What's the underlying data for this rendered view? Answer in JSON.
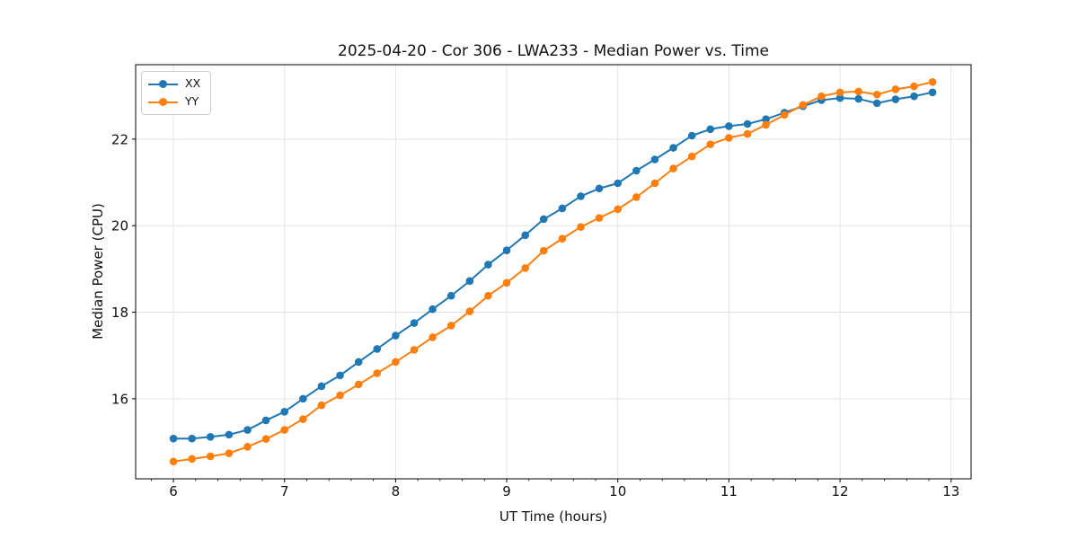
{
  "window": {
    "background": "#ffffff"
  },
  "chart_data": {
    "type": "line",
    "title": "2025-04-20 - Cor 306 - LWA233 - Median Power vs. Time",
    "xlabel": "UT Time (hours)",
    "ylabel": "Median Power (CPU)",
    "xlim": [
      5.66,
      13.18
    ],
    "ylim": [
      14.15,
      23.72
    ],
    "x_ticks": [
      6,
      7,
      8,
      9,
      10,
      11,
      12,
      13
    ],
    "x_minor_tick_step": 0.2,
    "y_ticks": [
      16,
      18,
      20,
      22
    ],
    "grid": true,
    "grid_color": "#e4e4e4",
    "legend_position": "upper-left",
    "x": [
      6,
      6.167,
      6.333,
      6.5,
      6.667,
      6.833,
      7,
      7.167,
      7.333,
      7.5,
      7.667,
      7.833,
      8,
      8.167,
      8.333,
      8.5,
      8.667,
      8.833,
      9,
      9.167,
      9.333,
      9.5,
      9.667,
      9.833,
      10,
      10.167,
      10.333,
      10.5,
      10.667,
      10.833,
      11,
      11.167,
      11.333,
      11.5,
      11.667,
      11.833,
      12,
      12.167,
      12.333,
      12.5,
      12.667,
      12.833
    ],
    "series": [
      {
        "name": "XX",
        "color": "#1f77b4",
        "marker": "circle",
        "values": [
          15.08,
          15.08,
          15.12,
          15.17,
          15.28,
          15.5,
          15.7,
          16.0,
          16.29,
          16.54,
          16.85,
          17.15,
          17.46,
          17.75,
          18.07,
          18.38,
          18.72,
          19.1,
          19.43,
          19.78,
          20.15,
          20.4,
          20.68,
          20.86,
          20.98,
          21.27,
          21.53,
          21.8,
          22.08,
          22.23,
          22.3,
          22.35,
          22.46,
          22.61,
          22.76,
          22.9,
          22.95,
          22.93,
          22.83,
          22.92,
          22.99,
          23.08
        ]
      },
      {
        "name": "YY",
        "color": "#ff7f0e",
        "marker": "circle",
        "values": [
          14.55,
          14.61,
          14.67,
          14.74,
          14.89,
          15.07,
          15.28,
          15.53,
          15.85,
          16.08,
          16.33,
          16.59,
          16.85,
          17.13,
          17.42,
          17.69,
          18.02,
          18.38,
          18.68,
          19.02,
          19.42,
          19.7,
          19.97,
          20.18,
          20.38,
          20.66,
          20.98,
          21.32,
          21.6,
          21.88,
          22.03,
          22.12,
          22.33,
          22.56,
          22.79,
          22.99,
          23.08,
          23.1,
          23.03,
          23.15,
          23.22,
          23.32
        ]
      }
    ]
  }
}
